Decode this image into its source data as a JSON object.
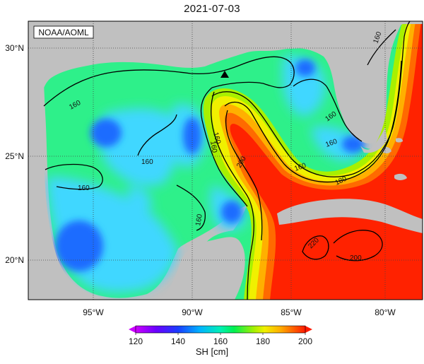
{
  "title": "2021-07-03",
  "source_label": "NOAA/AOML",
  "lat_labels": [
    "30°N",
    "25°N",
    "20°N"
  ],
  "lon_labels": [
    "95°W",
    "90°W",
    "85°W",
    "80°W"
  ],
  "contour_labels": [
    "160",
    "160",
    "160",
    "160",
    "160",
    "160",
    "160",
    "160",
    "160",
    "180",
    "200",
    "220",
    "200",
    "160"
  ],
  "colorbar": {
    "title": "SH [cm]",
    "ticks": [
      "120",
      "140",
      "160",
      "180",
      "200"
    ],
    "colors": [
      "#cc00ff",
      "#6a00ff",
      "#1a3dff",
      "#0080ff",
      "#00c8ff",
      "#00e6c8",
      "#00f07a",
      "#38f000",
      "#a0f000",
      "#f0f000",
      "#ffc800",
      "#ff7a00",
      "#ff1a00"
    ]
  },
  "colors": {
    "land": "#c0c0c0",
    "ocean_base": "#2ef08a",
    "deep_red": "#ff2200",
    "blue": "#1f6cff",
    "cyan": "#3fd7ff"
  }
}
